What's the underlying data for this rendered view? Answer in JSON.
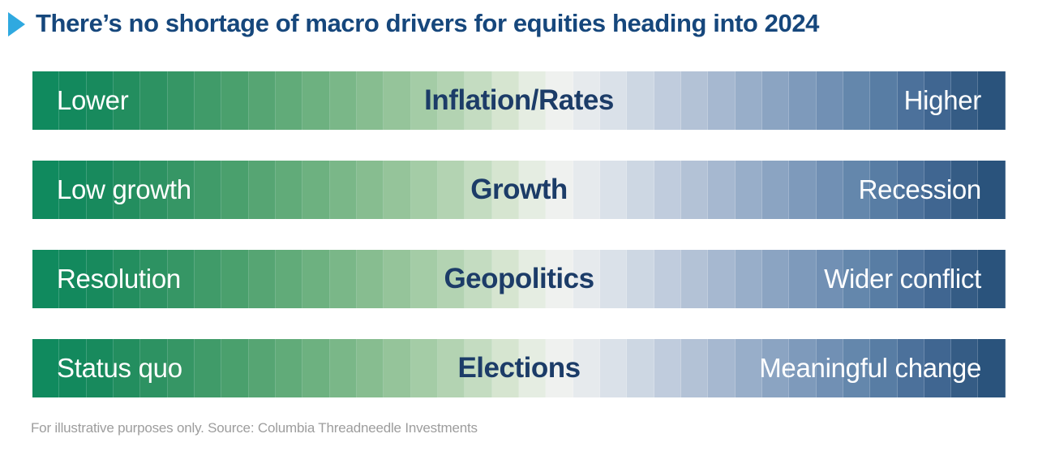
{
  "title": {
    "text": "There’s no shortage of macro drivers for equities heading into 2024"
  },
  "bars": [
    {
      "left": "Lower",
      "center": "Inflation/Rates",
      "right": "Higher"
    },
    {
      "left": "Low growth",
      "center": "Growth",
      "right": "Recession"
    },
    {
      "left": "Resolution",
      "center": "Geopolitics",
      "right": "Wider conflict"
    },
    {
      "left": "Status quo",
      "center": "Elections",
      "right": "Meaningful change"
    }
  ],
  "footnote": {
    "text": "For illustrative purposes only. Source: Columbia Threadneedle Investments"
  },
  "colors": {
    "title": "#16477C",
    "bullet": "#2FA9E0",
    "center_label": "#1C3C68",
    "edge_label": "#FFFFFF",
    "footnote": "#9D9D9D"
  },
  "gradient": {
    "segment_count": 36,
    "stops": [
      {
        "p": 0.0,
        "c": "#0E8A5F"
      },
      {
        "p": 0.06,
        "c": "#15895C"
      },
      {
        "p": 0.12,
        "c": "#2B9161"
      },
      {
        "p": 0.2,
        "c": "#479E6B"
      },
      {
        "p": 0.28,
        "c": "#68AE7D"
      },
      {
        "p": 0.36,
        "c": "#8DC094"
      },
      {
        "p": 0.43,
        "c": "#B3D3B2"
      },
      {
        "p": 0.49,
        "c": "#D8E6D2"
      },
      {
        "p": 0.535,
        "c": "#F1F3F0"
      },
      {
        "p": 0.58,
        "c": "#E2E7EC"
      },
      {
        "p": 0.64,
        "c": "#C6D1E0"
      },
      {
        "p": 0.72,
        "c": "#A0B4CD"
      },
      {
        "p": 0.8,
        "c": "#7A97B9"
      },
      {
        "p": 0.87,
        "c": "#5A7FA6"
      },
      {
        "p": 0.93,
        "c": "#406691"
      },
      {
        "p": 0.97,
        "c": "#305880"
      },
      {
        "p": 1.0,
        "c": "#254F79"
      }
    ]
  }
}
